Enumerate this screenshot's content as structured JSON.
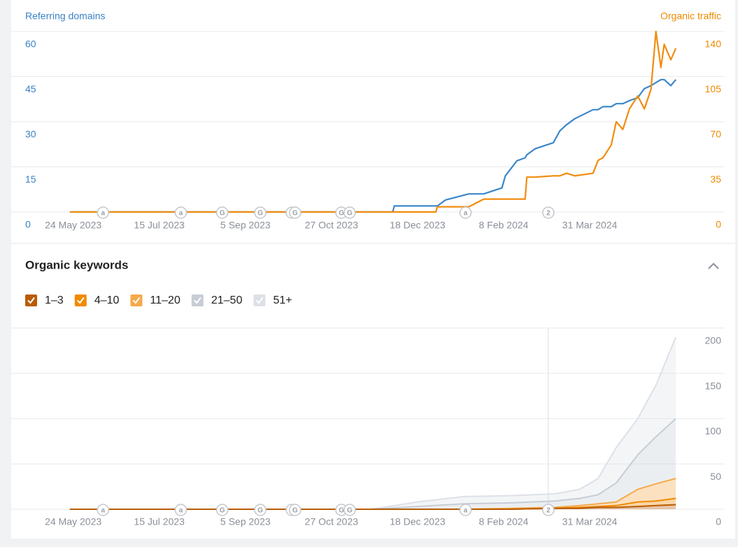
{
  "chart_data": [
    {
      "type": "line",
      "y_label": "Referring domains",
      "y2_label": "Organic traffic",
      "x": [
        "2023-05-22",
        "2023-12-03",
        "2023-12-04",
        "2023-12-29",
        "2023-12-30",
        "2024-01-04",
        "2024-01-18",
        "2024-01-27",
        "2024-02-07",
        "2024-02-09",
        "2024-02-16",
        "2024-02-21",
        "2024-02-22",
        "2024-02-27",
        "2024-03-09",
        "2024-03-13",
        "2024-03-17",
        "2024-03-22",
        "2024-04-02",
        "2024-04-05",
        "2024-04-08",
        "2024-04-13",
        "2024-04-16",
        "2024-04-20",
        "2024-04-24",
        "2024-04-29",
        "2024-05-03",
        "2024-05-07",
        "2024-05-10",
        "2024-05-13",
        "2024-05-15",
        "2024-05-19",
        "2024-05-22"
      ],
      "series": [
        {
          "name": "Referring domains",
          "color": "#3b87c9",
          "values": [
            0,
            0,
            2,
            2,
            2,
            4,
            6,
            6,
            8,
            12,
            17,
            18,
            19,
            21,
            23,
            27,
            29,
            31,
            34,
            34,
            35,
            35,
            36,
            36,
            37,
            38,
            41,
            42,
            43,
            44,
            44,
            42,
            44
          ]
        },
        {
          "name": "Organic traffic",
          "color": "#f28c0f",
          "axis": "y2",
          "values": [
            0,
            0,
            0,
            0,
            4,
            4,
            4,
            10,
            10,
            10,
            10,
            10,
            27,
            27,
            28,
            28,
            30,
            28,
            30,
            40,
            42,
            52,
            70,
            64,
            80,
            90,
            80,
            95,
            140,
            112,
            130,
            118,
            127
          ]
        }
      ],
      "xlim": [
        "2023-04-25",
        "2024-05-27"
      ],
      "xticks": [
        {
          "value": "2023-05-24",
          "label": "24 May 2023"
        },
        {
          "value": "2023-07-15",
          "label": "15 Jul 2023"
        },
        {
          "value": "2023-09-05",
          "label": "5 Sep 2023"
        },
        {
          "value": "2023-10-27",
          "label": "27 Oct 2023"
        },
        {
          "value": "2023-12-18",
          "label": "18 Dec 2023"
        },
        {
          "value": "2024-02-08",
          "label": "8 Feb 2024"
        },
        {
          "value": "2024-03-31",
          "label": "31 Mar 2024"
        }
      ],
      "ylim": [
        0,
        60
      ],
      "yticks": [
        0,
        15,
        30,
        45,
        60
      ],
      "y2lim": [
        0,
        140
      ],
      "y2ticks": [
        0,
        35,
        70,
        105,
        140
      ],
      "grid": true,
      "events": [
        {
          "x": "2023-06-11",
          "label": "a"
        },
        {
          "x": "2023-07-28",
          "label": "a"
        },
        {
          "x": "2023-08-22",
          "label": "G"
        },
        {
          "x": "2023-09-14",
          "label": "G"
        },
        {
          "x": "2023-10-03",
          "label": "G"
        },
        {
          "x": "2023-10-05",
          "label": "G"
        },
        {
          "x": "2023-11-02",
          "label": "G"
        },
        {
          "x": "2023-11-07",
          "label": "G"
        },
        {
          "x": "2024-01-16",
          "label": "a"
        },
        {
          "x": "2024-03-06",
          "label": "2"
        }
      ]
    },
    {
      "type": "area",
      "stacked": true,
      "title": "Organic keywords",
      "x": [
        "2023-05-22",
        "2023-11-20",
        "2023-12-18",
        "2024-01-15",
        "2024-02-12",
        "2024-03-10",
        "2024-03-25",
        "2024-04-05",
        "2024-04-16",
        "2024-04-29",
        "2024-05-10",
        "2024-05-22"
      ],
      "series": [
        {
          "name": "1–3",
          "color": "#b85c05",
          "values": [
            0,
            0,
            0,
            0,
            0,
            1,
            1,
            2,
            2,
            3,
            4,
            5
          ]
        },
        {
          "name": "4–10",
          "color": "#f08a00",
          "values": [
            0,
            0,
            0,
            0,
            0,
            0,
            1,
            1,
            2,
            5,
            5,
            7
          ]
        },
        {
          "name": "11–20",
          "color": "#f6a94b",
          "values": [
            0,
            0,
            0,
            0,
            1,
            1,
            2,
            3,
            4,
            14,
            19,
            22
          ]
        },
        {
          "name": "21–50",
          "color": "#c7cdd5",
          "values": [
            0,
            0,
            3,
            6,
            6,
            7,
            8,
            10,
            21,
            38,
            52,
            66
          ]
        },
        {
          "name": "51+",
          "color": "#dde1e7",
          "values": [
            0,
            0,
            5,
            8,
            8,
            8,
            10,
            18,
            39,
            40,
            57,
            90
          ]
        }
      ],
      "xlim": [
        "2023-04-25",
        "2024-05-27"
      ],
      "xticks": [
        {
          "value": "2023-05-24",
          "label": "24 May 2023"
        },
        {
          "value": "2023-07-15",
          "label": "15 Jul 2023"
        },
        {
          "value": "2023-09-05",
          "label": "5 Sep 2023"
        },
        {
          "value": "2023-10-27",
          "label": "27 Oct 2023"
        },
        {
          "value": "2023-12-18",
          "label": "18 Dec 2023"
        },
        {
          "value": "2024-02-08",
          "label": "8 Feb 2024"
        },
        {
          "value": "2024-03-31",
          "label": "31 Mar 2024"
        }
      ],
      "ylim": [
        0,
        200
      ],
      "yticks": [
        0,
        50,
        100,
        150,
        200
      ],
      "grid": true,
      "events": [
        {
          "x": "2023-06-11",
          "label": "a"
        },
        {
          "x": "2023-07-28",
          "label": "a"
        },
        {
          "x": "2023-08-22",
          "label": "G"
        },
        {
          "x": "2023-09-14",
          "label": "G"
        },
        {
          "x": "2023-10-03",
          "label": "G"
        },
        {
          "x": "2023-10-05",
          "label": "G"
        },
        {
          "x": "2023-11-02",
          "label": "G"
        },
        {
          "x": "2023-11-07",
          "label": "G"
        },
        {
          "x": "2024-01-16",
          "label": "a"
        },
        {
          "x": "2024-03-06",
          "label": "2"
        }
      ]
    }
  ]
}
